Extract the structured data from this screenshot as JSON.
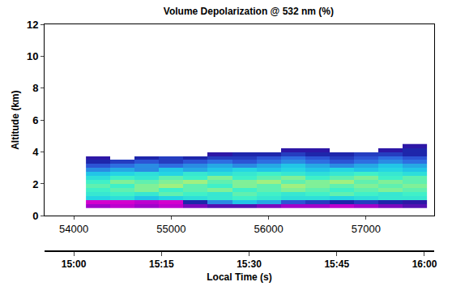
{
  "chart_data": {
    "type": "heatmap",
    "title": "Volume Depolarization @ 532 nm (%)",
    "xlabel": "Local Time (s)",
    "ylabel": "Altitude (km)",
    "x": [
      54250,
      54500,
      54750,
      55000,
      55250,
      55500,
      55750,
      56000,
      56250,
      56500,
      56750,
      57000,
      57250,
      57500
    ],
    "y": [
      0.625,
      0.875,
      1.125,
      1.375,
      1.625,
      1.875,
      2.125,
      2.375,
      2.625,
      2.875,
      3.125,
      3.375,
      3.625,
      3.875,
      4.125,
      4.375
    ],
    "cells": [
      [
        4,
        3,
        4,
        3,
        5,
        6,
        6,
        5,
        4,
        4,
        3,
        4,
        5,
        6
      ],
      [
        2,
        2,
        3,
        2,
        8,
        12,
        14,
        13,
        10,
        9,
        8,
        9,
        8,
        7
      ],
      [
        15,
        16,
        14,
        15,
        16,
        17,
        18,
        17,
        16,
        16,
        15,
        16,
        17,
        17
      ],
      [
        17,
        18,
        17,
        19,
        18,
        17,
        19,
        18,
        17,
        18,
        19,
        18,
        17,
        18
      ],
      [
        18,
        19,
        20,
        18,
        19,
        20,
        18,
        19,
        20,
        19,
        18,
        19,
        20,
        19
      ],
      [
        19,
        18,
        20,
        21,
        19,
        18,
        20,
        19,
        21,
        20,
        19,
        20,
        19,
        20
      ],
      [
        18,
        20,
        19,
        20,
        21,
        19,
        20,
        21,
        19,
        20,
        21,
        19,
        20,
        19
      ],
      [
        16,
        18,
        17,
        19,
        18,
        20,
        18,
        19,
        20,
        18,
        19,
        20,
        18,
        19
      ],
      [
        14,
        15,
        16,
        15,
        17,
        16,
        17,
        18,
        17,
        16,
        17,
        18,
        17,
        16
      ],
      [
        12,
        13,
        12,
        14,
        13,
        14,
        15,
        14,
        15,
        14,
        15,
        14,
        15,
        14
      ],
      [
        10,
        11,
        12,
        11,
        12,
        13,
        12,
        13,
        14,
        13,
        12,
        13,
        14,
        13
      ],
      [
        8,
        9,
        10,
        9,
        10,
        11,
        10,
        11,
        12,
        11,
        10,
        11,
        12,
        11
      ],
      [
        7,
        null,
        8,
        9,
        8,
        9,
        9,
        10,
        11,
        10,
        9,
        10,
        11,
        10
      ],
      [
        null,
        null,
        null,
        null,
        null,
        7,
        8,
        8,
        9,
        8,
        8,
        9,
        9,
        8
      ],
      [
        null,
        null,
        null,
        null,
        null,
        null,
        null,
        null,
        7,
        7,
        null,
        null,
        7,
        8
      ],
      [
        null,
        null,
        null,
        null,
        null,
        null,
        null,
        null,
        null,
        null,
        null,
        null,
        null,
        7
      ]
    ],
    "zlim": [
      0,
      30
    ],
    "xlim": [
      53700,
      57700
    ],
    "xticks": [
      54000,
      55000,
      56000,
      57000
    ],
    "x2lim": [
      53700,
      57700
    ],
    "x2ticks": [
      {
        "value": 54000,
        "label": "15:00"
      },
      {
        "value": 54900,
        "label": "15:15"
      },
      {
        "value": 55800,
        "label": "15:30"
      },
      {
        "value": 56700,
        "label": "15:45"
      },
      {
        "value": 57600,
        "label": "16:00"
      }
    ],
    "ylim": [
      0,
      12
    ],
    "yticks": [
      0,
      2,
      4,
      6,
      8,
      10,
      12
    ]
  }
}
